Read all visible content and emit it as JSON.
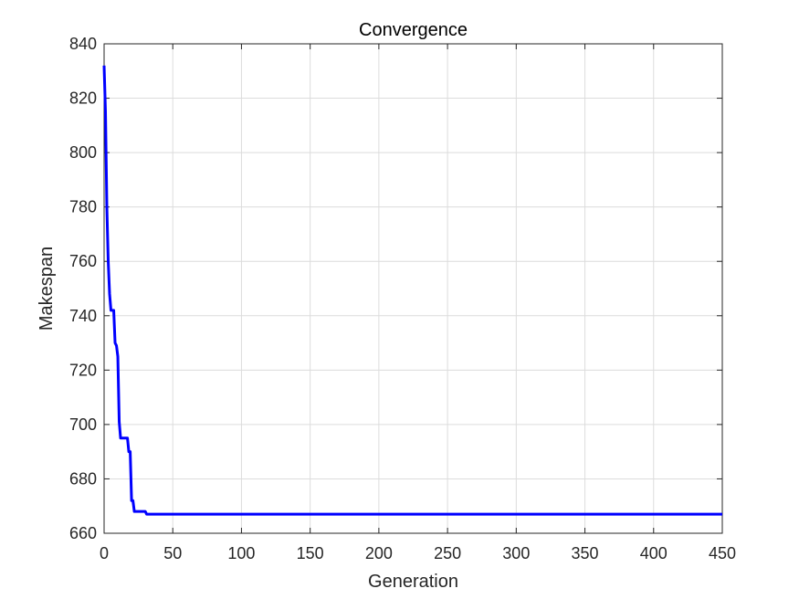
{
  "chart_data": {
    "type": "line",
    "title": "Convergence",
    "xlabel": "Generation",
    "ylabel": "Makespan",
    "xlim": [
      0,
      450
    ],
    "ylim": [
      660,
      840
    ],
    "xticks": [
      0,
      50,
      100,
      150,
      200,
      250,
      300,
      350,
      400,
      450
    ],
    "yticks": [
      660,
      680,
      700,
      720,
      740,
      760,
      780,
      800,
      820,
      840
    ],
    "grid": true,
    "legend": "none",
    "series": [
      {
        "color": "#0000ff",
        "x": [
          0,
          1,
          2,
          3,
          4,
          5,
          6,
          7,
          8,
          9,
          10,
          11,
          12,
          13,
          14,
          15,
          16,
          17,
          18,
          19,
          20,
          21,
          22,
          28,
          30,
          31,
          32,
          450
        ],
        "y": [
          832,
          815,
          780,
          760,
          748,
          742,
          742,
          742,
          730,
          729,
          725,
          701,
          695,
          695,
          695,
          695,
          695,
          695,
          690,
          690,
          672,
          672,
          668,
          668,
          668,
          667,
          667,
          667
        ]
      }
    ]
  },
  "colors": {
    "line": "#0000ff",
    "grid": "#dcdcdc",
    "axes": "#262626",
    "background": "#ffffff"
  }
}
